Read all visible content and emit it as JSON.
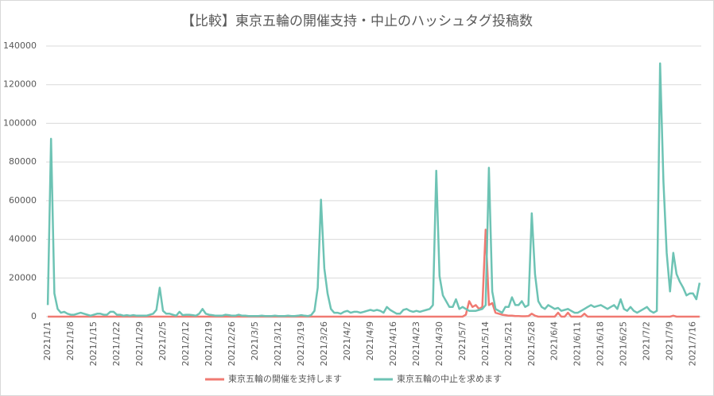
{
  "chart_data": {
    "type": "line",
    "title": "【比較】東京五輪の開催支持・中止のハッシュタグ投稿数",
    "categories": [
      "2021/1/1",
      null,
      null,
      null,
      null,
      null,
      null,
      "2021/1/8",
      null,
      null,
      null,
      null,
      null,
      null,
      "2021/1/15",
      null,
      null,
      null,
      null,
      null,
      null,
      "2021/1/22",
      null,
      null,
      null,
      null,
      null,
      null,
      "2021/1/29",
      null,
      null,
      null,
      null,
      null,
      null,
      "2021/2/5",
      null,
      null,
      null,
      null,
      null,
      null,
      "2021/2/12",
      null,
      null,
      null,
      null,
      null,
      null,
      "2021/2/19",
      null,
      null,
      null,
      null,
      null,
      null,
      "2021/2/26",
      null,
      null,
      null,
      null,
      null,
      null,
      "2021/3/5",
      null,
      null,
      null,
      null,
      null,
      null,
      "2021/3/12",
      null,
      null,
      null,
      null,
      null,
      null,
      "2021/3/19",
      null,
      null,
      null,
      null,
      null,
      null,
      "2021/3/26",
      null,
      null,
      null,
      null,
      null,
      null,
      "2021/4/2",
      null,
      null,
      null,
      null,
      null,
      null,
      "2021/4/9",
      null,
      null,
      null,
      null,
      null,
      null,
      "2021/4/16",
      null,
      null,
      null,
      null,
      null,
      null,
      "2021/4/23",
      null,
      null,
      null,
      null,
      null,
      null,
      "2021/4/30",
      null,
      null,
      null,
      null,
      null,
      null,
      "2021/5/7",
      null,
      null,
      null,
      null,
      null,
      null,
      "2021/5/14",
      null,
      null,
      null,
      null,
      null,
      null,
      "2021/5/21",
      null,
      null,
      null,
      null,
      null,
      null,
      "2021/5/28",
      null,
      null,
      null,
      null,
      null,
      null,
      "2021/6/4",
      null,
      null,
      null,
      null,
      null,
      null,
      "2021/6/11",
      null,
      null,
      null,
      null,
      null,
      null,
      "2021/6/18",
      null,
      null,
      null,
      null,
      null,
      null,
      "2021/6/25",
      null,
      null,
      null,
      null,
      null,
      null,
      "2021/7/2",
      null,
      null,
      null,
      null,
      null,
      null,
      "2021/7/9",
      null,
      null,
      null,
      null,
      null,
      null,
      "2021/7/16",
      null,
      null
    ],
    "series": [
      {
        "name": "東京五輪の開催を支持します",
        "color": "#f07a72",
        "values": [
          0,
          0,
          0,
          0,
          0,
          0,
          0,
          0,
          0,
          0,
          0,
          0,
          0,
          0,
          0,
          0,
          0,
          0,
          0,
          0,
          0,
          0,
          0,
          0,
          0,
          0,
          0,
          0,
          0,
          0,
          0,
          0,
          0,
          0,
          0,
          0,
          0,
          0,
          0,
          0,
          0,
          0,
          0,
          0,
          0,
          0,
          0,
          0,
          0,
          0,
          0,
          0,
          0,
          0,
          0,
          0,
          0,
          0,
          0,
          0,
          0,
          0,
          0,
          0,
          0,
          0,
          0,
          0,
          0,
          0,
          0,
          0,
          0,
          0,
          0,
          0,
          0,
          0,
          0,
          0,
          0,
          0,
          0,
          0,
          0,
          0,
          0,
          0,
          0,
          0,
          0,
          0,
          0,
          0,
          0,
          0,
          0,
          0,
          0,
          0,
          0,
          0,
          0,
          0,
          0,
          0,
          0,
          0,
          0,
          0,
          0,
          0,
          0,
          0,
          0,
          0,
          0,
          0,
          0,
          0,
          0,
          0,
          0,
          0,
          0,
          0,
          0,
          1000,
          8000,
          5000,
          6000,
          4000,
          5000,
          45000,
          6000,
          7000,
          2000,
          1500,
          1000,
          800,
          500,
          500,
          300,
          300,
          200,
          200,
          300,
          1500,
          500,
          0,
          0,
          0,
          0,
          0,
          0,
          2000,
          0,
          0,
          2000,
          0,
          0,
          0,
          0,
          1500,
          0,
          0,
          0,
          0,
          0,
          0,
          0,
          0,
          0,
          0,
          0,
          0,
          0,
          0,
          0,
          0,
          0,
          0,
          0,
          0,
          0,
          0,
          0,
          0,
          0,
          0,
          500,
          0,
          0,
          0,
          0,
          0,
          0,
          0,
          0
        ]
      },
      {
        "name": "東京五輪の中止を求めます",
        "color": "#6dc3b4",
        "values": [
          6000,
          92000,
          12000,
          4000,
          2000,
          2500,
          1500,
          1000,
          1000,
          1500,
          2000,
          1500,
          1000,
          500,
          1000,
          1500,
          1500,
          1000,
          1000,
          2500,
          2500,
          1000,
          1000,
          500,
          800,
          500,
          800,
          500,
          500,
          500,
          500,
          1000,
          1500,
          3500,
          15000,
          3000,
          1500,
          1500,
          1000,
          500,
          2500,
          800,
          1000,
          1000,
          800,
          500,
          1500,
          4000,
          1500,
          1000,
          800,
          500,
          500,
          500,
          1000,
          800,
          500,
          500,
          1000,
          500,
          500,
          300,
          300,
          300,
          300,
          500,
          300,
          300,
          300,
          500,
          300,
          300,
          300,
          500,
          300,
          300,
          500,
          800,
          500,
          300,
          800,
          3000,
          15000,
          60500,
          25000,
          12000,
          4000,
          2000,
          2000,
          1500,
          2500,
          3000,
          2000,
          2500,
          2500,
          2000,
          2500,
          3000,
          3500,
          3000,
          3500,
          3000,
          2000,
          5000,
          3500,
          2500,
          1500,
          1500,
          3500,
          4000,
          3000,
          2500,
          3000,
          2500,
          3000,
          3500,
          4000,
          6000,
          75500,
          21000,
          11000,
          8000,
          5000,
          5000,
          9000,
          4000,
          5000,
          4000,
          3000,
          3000,
          3000,
          3500,
          4000,
          6000,
          77000,
          13000,
          4000,
          3000,
          2000,
          5000,
          5000,
          10000,
          6000,
          6000,
          8000,
          5000,
          6000,
          53500,
          22000,
          8000,
          5000,
          4000,
          6000,
          5000,
          4000,
          4500,
          3000,
          3500,
          4000,
          3000,
          2000,
          2000,
          3000,
          4000,
          5000,
          6000,
          5000,
          5500,
          6000,
          5000,
          4000,
          5000,
          6000,
          4000,
          9000,
          4000,
          3000,
          5000,
          3000,
          2000,
          3000,
          4000,
          5000,
          3000,
          2000,
          3000,
          131000,
          70000,
          33000,
          13000,
          33000,
          22000,
          18000,
          15000,
          11000,
          12000,
          12000,
          9000,
          17500
        ]
      }
    ],
    "ylim": [
      0,
      140000
    ],
    "yticks": [
      0,
      20000,
      40000,
      60000,
      80000,
      100000,
      120000,
      140000
    ],
    "grid": true,
    "legend": "bottom"
  }
}
